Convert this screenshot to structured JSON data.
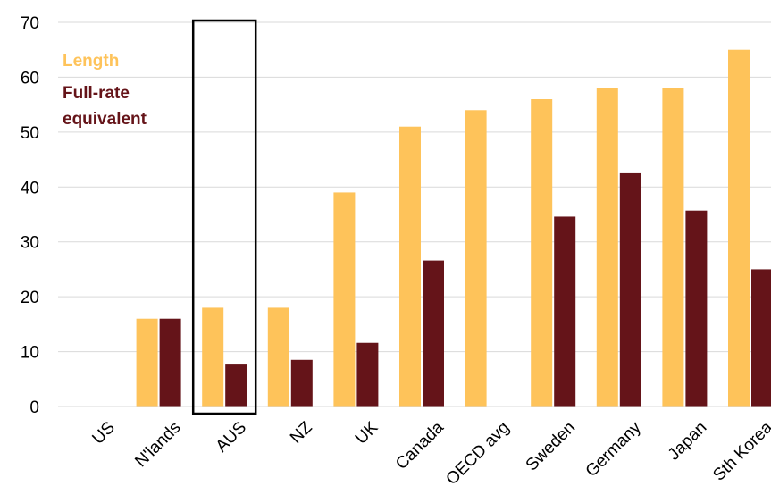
{
  "chart_data": {
    "type": "bar",
    "title": "",
    "xlabel": "",
    "ylabel": "",
    "ylim": [
      0,
      70
    ],
    "yticks": [
      0,
      10,
      20,
      30,
      40,
      50,
      60,
      70
    ],
    "grid": "horizontal",
    "legend_placement": "top-left",
    "highlight_category": "AUS",
    "categories": [
      "US",
      "N'lands",
      "AUS",
      "NZ",
      "UK",
      "Canada",
      "OECD avg",
      "Sweden",
      "Germany",
      "Japan",
      "Sth Korea"
    ],
    "series": [
      {
        "name": "Length",
        "color": "#FEC35A",
        "values": [
          0,
          16,
          18,
          18,
          39,
          51,
          54,
          56,
          58,
          58,
          65
        ]
      },
      {
        "name": "Full-rate equivalent",
        "legend_lines": [
          "Full-rate",
          "equivalent"
        ],
        "color": "#651419",
        "values": [
          0,
          16,
          7.8,
          8.5,
          11.6,
          26.6,
          null,
          34.6,
          42.5,
          35.7,
          25
        ]
      }
    ]
  }
}
